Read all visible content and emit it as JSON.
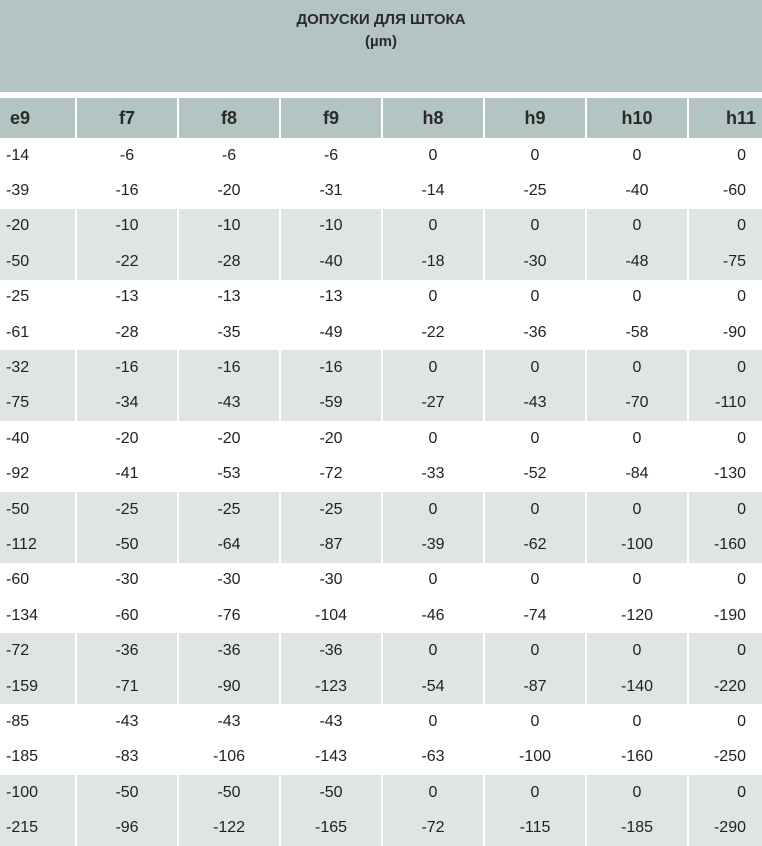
{
  "title": {
    "line1": "ДОПУСКИ ДЛЯ ШТОКА",
    "line2": "(µm)"
  },
  "table": {
    "headers": [
      "e9",
      "f7",
      "f8",
      "f9",
      "h8",
      "h9",
      "h10",
      "h11"
    ],
    "rows": [
      [
        "-14",
        "-6",
        "-6",
        "-6",
        "0",
        "0",
        "0",
        "0"
      ],
      [
        "-39",
        "-16",
        "-20",
        "-31",
        "-14",
        "-25",
        "-40",
        "-60"
      ],
      [
        "-20",
        "-10",
        "-10",
        "-10",
        "0",
        "0",
        "0",
        "0"
      ],
      [
        "-50",
        "-22",
        "-28",
        "-40",
        "-18",
        "-30",
        "-48",
        "-75"
      ],
      [
        "-25",
        "-13",
        "-13",
        "-13",
        "0",
        "0",
        "0",
        "0"
      ],
      [
        "-61",
        "-28",
        "-35",
        "-49",
        "-22",
        "-36",
        "-58",
        "-90"
      ],
      [
        "-32",
        "-16",
        "-16",
        "-16",
        "0",
        "0",
        "0",
        "0"
      ],
      [
        "-75",
        "-34",
        "-43",
        "-59",
        "-27",
        "-43",
        "-70",
        "-110"
      ],
      [
        "-40",
        "-20",
        "-20",
        "-20",
        "0",
        "0",
        "0",
        "0"
      ],
      [
        "-92",
        "-41",
        "-53",
        "-72",
        "-33",
        "-52",
        "-84",
        "-130"
      ],
      [
        "-50",
        "-25",
        "-25",
        "-25",
        "0",
        "0",
        "0",
        "0"
      ],
      [
        "-112",
        "-50",
        "-64",
        "-87",
        "-39",
        "-62",
        "-100",
        "-160"
      ],
      [
        "-60",
        "-30",
        "-30",
        "-30",
        "0",
        "0",
        "0",
        "0"
      ],
      [
        "-134",
        "-60",
        "-76",
        "-104",
        "-46",
        "-74",
        "-120",
        "-190"
      ],
      [
        "-72",
        "-36",
        "-36",
        "-36",
        "0",
        "0",
        "0",
        "0"
      ],
      [
        "-159",
        "-71",
        "-90",
        "-123",
        "-54",
        "-87",
        "-140",
        "-220"
      ],
      [
        "-85",
        "-43",
        "-43",
        "-43",
        "0",
        "0",
        "0",
        "0"
      ],
      [
        "-185",
        "-83",
        "-106",
        "-143",
        "-63",
        "-100",
        "-160",
        "-250"
      ],
      [
        "-100",
        "-50",
        "-50",
        "-50",
        "0",
        "0",
        "0",
        "0"
      ],
      [
        "-215",
        "-96",
        "-122",
        "-165",
        "-72",
        "-115",
        "-185",
        "-290"
      ]
    ]
  },
  "colors": {
    "header_background": "#b3c4c2",
    "band_background": "#dfe5e4",
    "text": "#222222"
  }
}
